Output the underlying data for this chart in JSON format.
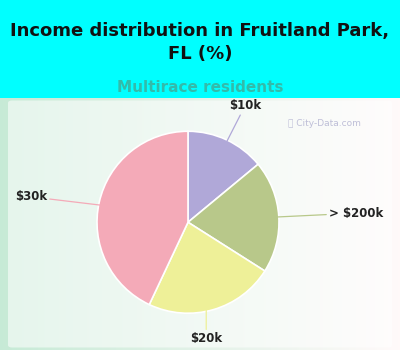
{
  "title": "Income distribution in Fruitland Park,\nFL (%)",
  "subtitle": "Multirace residents",
  "slices": [
    {
      "label": "$10k",
      "value": 14,
      "color": "#b0a8d8"
    },
    {
      "label": "> $200k",
      "value": 20,
      "color": "#b8c88a"
    },
    {
      "label": "$20k",
      "value": 23,
      "color": "#eef098"
    },
    {
      "label": "$30k",
      "value": 43,
      "color": "#f4aab8"
    }
  ],
  "title_fontsize": 13,
  "subtitle_fontsize": 11,
  "subtitle_color": "#33bbaa",
  "background_color": "#00ffff",
  "watermark": "City-Data.com",
  "label_color": "#222222",
  "label_fontsize": 8.5,
  "startangle": 90
}
